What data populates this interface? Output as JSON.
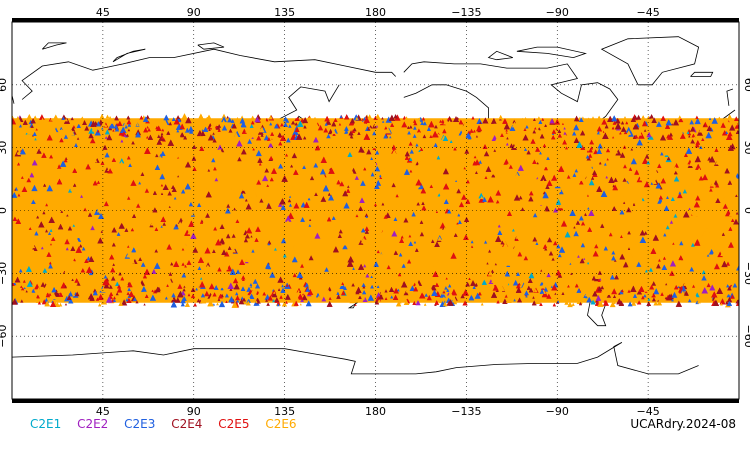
{
  "map": {
    "projection": "equirectangular",
    "central_longitude": 180,
    "lat_range": [
      -90,
      90
    ],
    "lon_labels": [
      "45",
      "90",
      "135",
      "180",
      "−135",
      "−90",
      "−45"
    ],
    "lon_values": [
      45,
      90,
      135,
      180,
      -135,
      -90,
      -45
    ],
    "lat_labels": [
      "60",
      "30",
      "0",
      "−30",
      "−60"
    ],
    "lat_values": [
      60,
      30,
      0,
      -30,
      -60
    ],
    "coverage_lat_range": [
      -45,
      45
    ],
    "grid": "dotted",
    "coastline_color": "#000000"
  },
  "legend": [
    {
      "label": "C2E1",
      "color": "#00aacc"
    },
    {
      "label": "C2E2",
      "color": "#a020c0"
    },
    {
      "label": "C2E3",
      "color": "#2060e0"
    },
    {
      "label": "C2E4",
      "color": "#a01020"
    },
    {
      "label": "C2E5",
      "color": "#e01010"
    },
    {
      "label": "C2E6",
      "color": "#ffaa00"
    }
  ],
  "product_label": "UCARdry.2024-08"
}
